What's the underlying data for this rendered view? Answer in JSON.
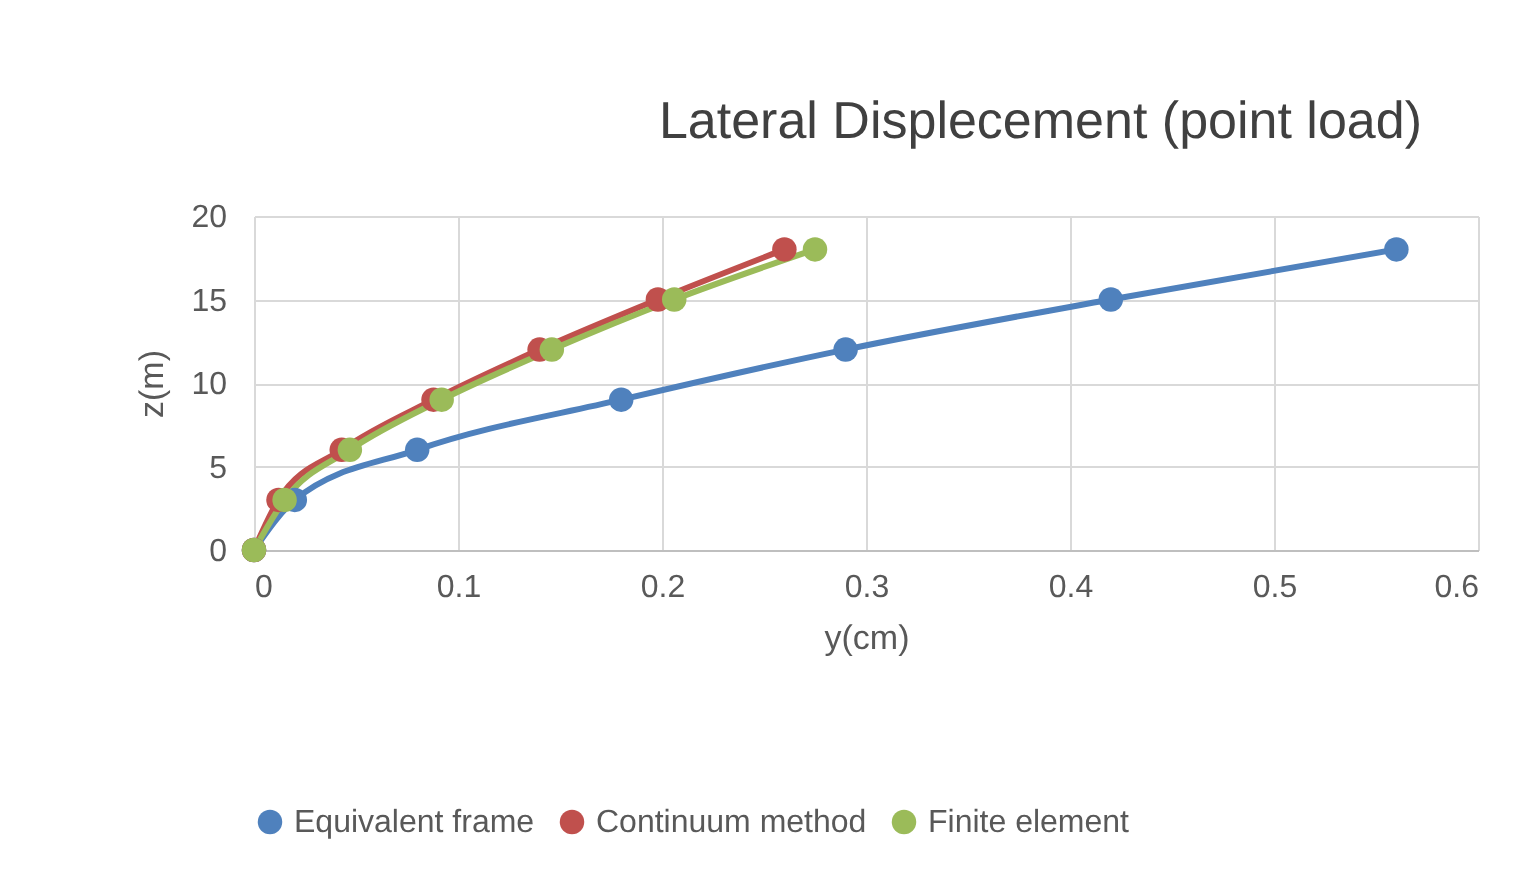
{
  "chart_data": {
    "type": "line",
    "title": "Lateral Displecement (point load)",
    "xlabel": "y(cm)",
    "ylabel": "z(m)",
    "xlim": [
      0,
      0.6
    ],
    "xticks": [
      0,
      0.1,
      0.2,
      0.3,
      0.4,
      0.5,
      0.6
    ],
    "ylim": [
      0,
      20
    ],
    "yticks": [
      0,
      5,
      10,
      15,
      20
    ],
    "grid": true,
    "legend": "bottom",
    "marker": "circle",
    "line_style": "solid",
    "series": [
      {
        "name": "Equivalent frame",
        "color": "#4f81bd",
        "x": [
          0,
          0.02,
          0.08,
          0.18,
          0.29,
          0.42,
          0.56
        ],
        "values": [
          0,
          3,
          6,
          9,
          12,
          15,
          18
        ]
      },
      {
        "name": "Continuum method",
        "color": "#c0504d",
        "x": [
          0,
          0.012,
          0.043,
          0.088,
          0.14,
          0.198,
          0.26
        ],
        "values": [
          0,
          3,
          6,
          9,
          12,
          15,
          18
        ]
      },
      {
        "name": "Finite element",
        "color": "#9bbb59",
        "x": [
          0,
          0.015,
          0.047,
          0.092,
          0.146,
          0.206,
          0.275
        ],
        "values": [
          0,
          3,
          6,
          9,
          12,
          15,
          18
        ]
      }
    ]
  }
}
